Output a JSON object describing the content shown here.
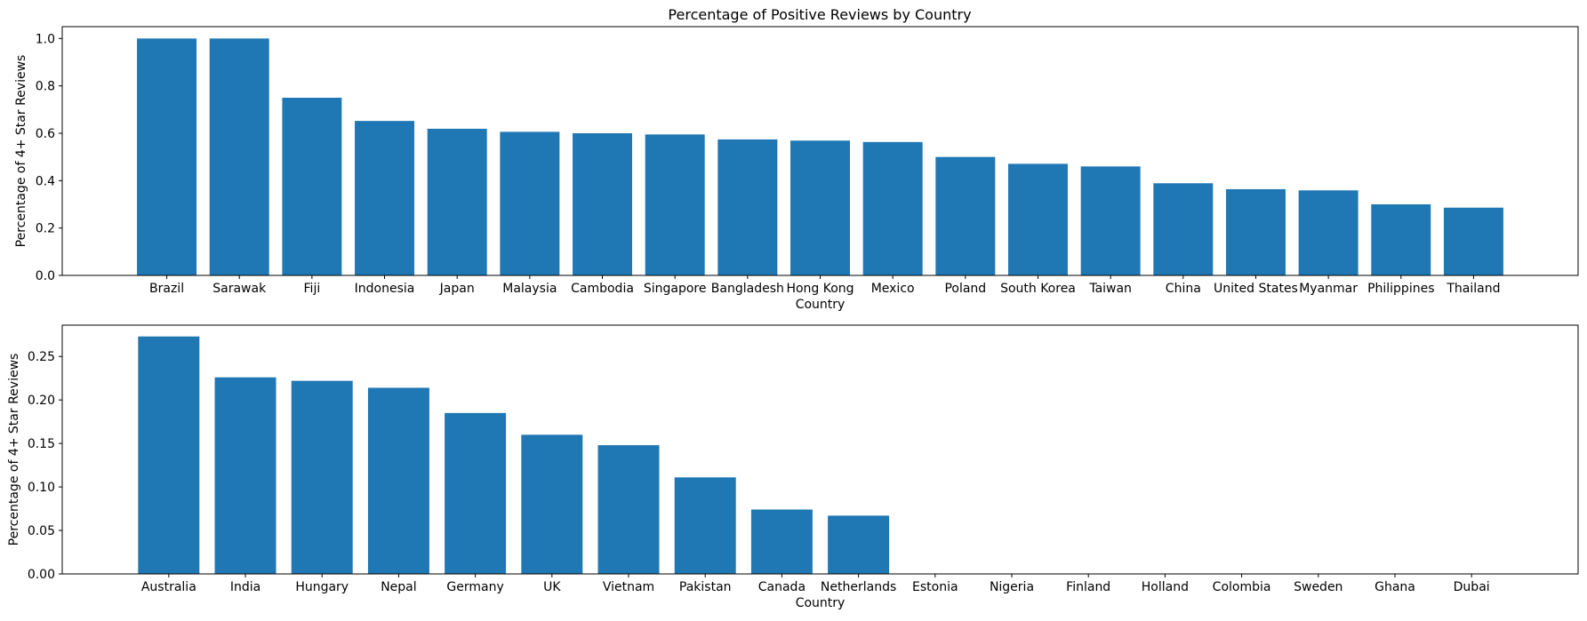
{
  "chart_data": [
    {
      "type": "bar",
      "title": "Percentage of Positive Reviews by Country",
      "xlabel": "Country",
      "ylabel": "Percentage of 4+ Star Reviews",
      "ylim": [
        0,
        1.05
      ],
      "yticks": [
        0.0,
        0.2,
        0.4,
        0.6,
        0.8,
        1.0
      ],
      "ytick_labels": [
        "0.0",
        "0.2",
        "0.4",
        "0.6",
        "0.8",
        "1.0"
      ],
      "color": "#1f77b4",
      "grid": false,
      "categories": [
        "Brazil",
        "Sarawak",
        "Fiji",
        "Indonesia",
        "Japan",
        "Malaysia",
        "Cambodia",
        "Singapore",
        "Bangladesh",
        "Hong Kong",
        "Mexico",
        "Poland",
        "South Korea",
        "Taiwan",
        "China",
        "United States",
        "Myanmar",
        "Philippines",
        "Thailand"
      ],
      "values": [
        1.0,
        1.0,
        0.75,
        0.652,
        0.619,
        0.606,
        0.6,
        0.595,
        0.574,
        0.569,
        0.563,
        0.5,
        0.471,
        0.46,
        0.389,
        0.364,
        0.359,
        0.3,
        0.286
      ]
    },
    {
      "type": "bar",
      "title": "",
      "xlabel": "Country",
      "ylabel": "Percentage of 4+ Star Reviews",
      "ylim": [
        0,
        0.286
      ],
      "yticks": [
        0.0,
        0.05,
        0.1,
        0.15,
        0.2,
        0.25
      ],
      "ytick_labels": [
        "0.00",
        "0.05",
        "0.10",
        "0.15",
        "0.20",
        "0.25"
      ],
      "color": "#1f77b4",
      "grid": false,
      "categories": [
        "Australia",
        "India",
        "Hungary",
        "Nepal",
        "Germany",
        "UK",
        "Vietnam",
        "Pakistan",
        "Canada",
        "Netherlands",
        "Estonia",
        "Nigeria",
        "Finland",
        "Holland",
        "Colombia",
        "Sweden",
        "Ghana",
        "Dubai"
      ],
      "values": [
        0.273,
        0.226,
        0.222,
        0.214,
        0.185,
        0.16,
        0.148,
        0.111,
        0.074,
        0.067,
        0,
        0,
        0,
        0,
        0,
        0,
        0,
        0
      ]
    }
  ]
}
